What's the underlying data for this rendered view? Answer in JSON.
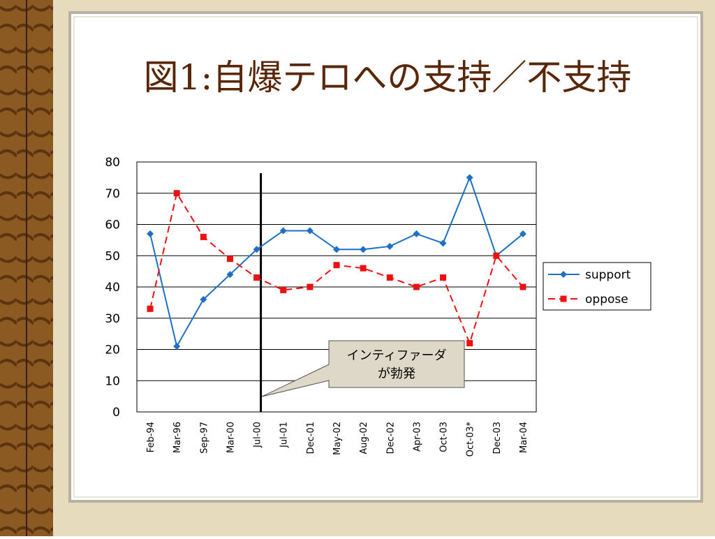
{
  "chart_data": {
    "type": "line",
    "title": "図1:自爆テロへの支持／不支持",
    "categories": [
      "Feb-94",
      "Mar-96",
      "Sep-97",
      "Mar-00",
      "Jul-00",
      "Jul-01",
      "Dec-01",
      "May-02",
      "Aug-02",
      "Dec-02",
      "Apr-03",
      "Oct-03",
      "Oct-03*",
      "Dec-03",
      "Mar-04"
    ],
    "series": [
      {
        "name": "support",
        "color": "#1f6fc4",
        "marker": "diamond",
        "dash": false,
        "values": [
          57,
          21,
          36,
          44,
          52,
          58,
          58,
          52,
          52,
          53,
          57,
          54,
          75,
          50,
          57
        ]
      },
      {
        "name": "oppose",
        "color": "#ee1111",
        "marker": "square",
        "dash": true,
        "values": [
          33,
          70,
          56,
          49,
          43,
          39,
          40,
          47,
          46,
          43,
          40,
          43,
          22,
          50,
          40
        ]
      }
    ],
    "ylim": [
      0,
      80
    ],
    "yticks": [
      0,
      10,
      20,
      30,
      40,
      50,
      60,
      70,
      80
    ],
    "grid": true,
    "legend": "right",
    "annotation": [
      "インティファーダ",
      "が勃発"
    ]
  }
}
